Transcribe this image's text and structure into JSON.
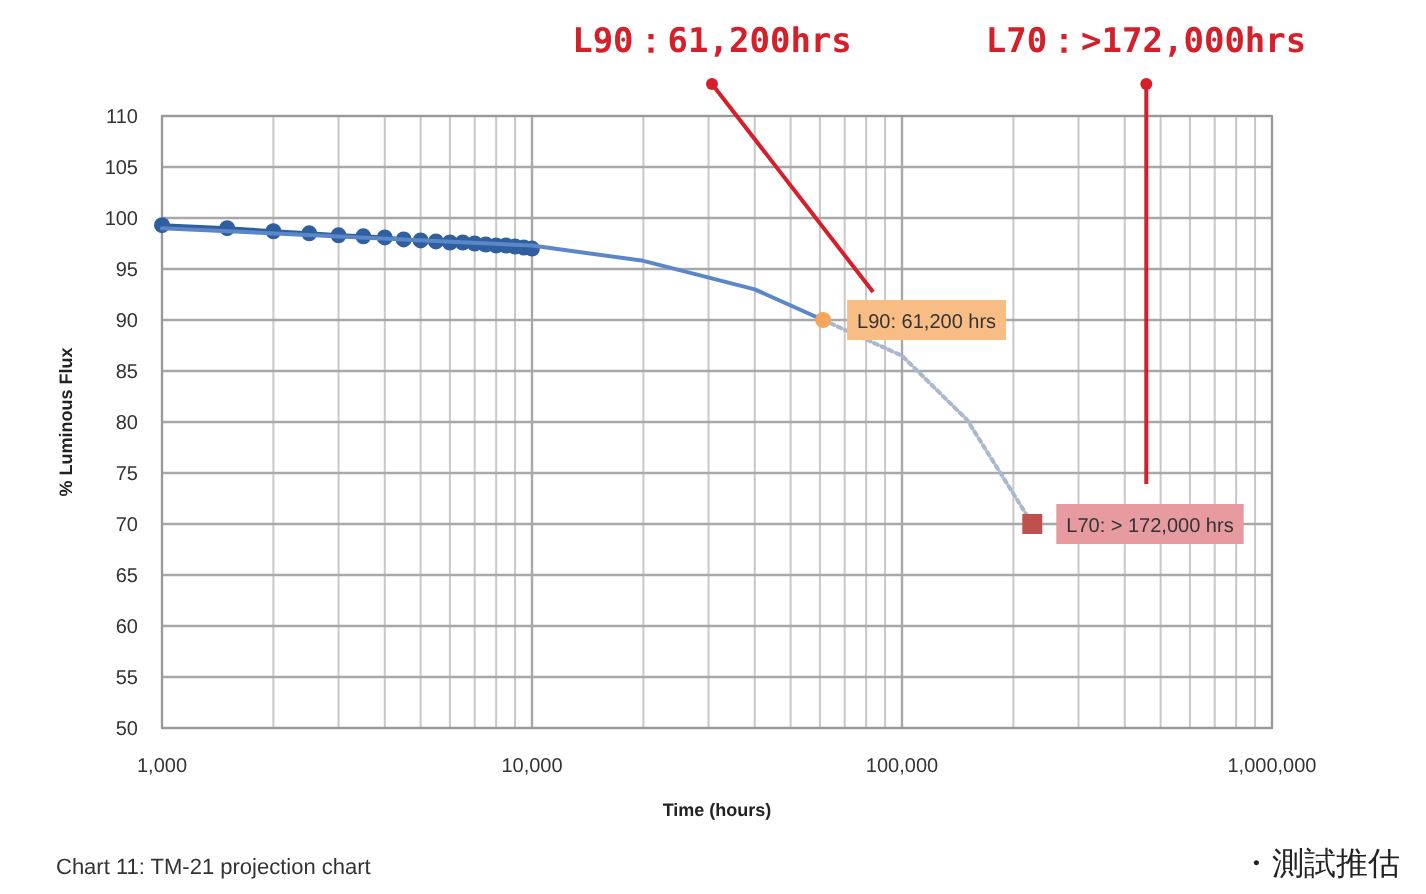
{
  "chart_data": {
    "type": "scatter",
    "xlabel": "Time (hours)",
    "ylabel": "% Luminous Flux",
    "log": "x",
    "grid": true,
    "xlim": [
      1000,
      1000000
    ],
    "ylim": [
      50,
      110
    ],
    "xticks": [
      {
        "value": 1000,
        "label": "1,000"
      },
      {
        "value": 10000,
        "label": "10,000"
      },
      {
        "value": 100000,
        "label": "100,000"
      },
      {
        "value": 1000000,
        "label": "1,000,000"
      }
    ],
    "yticks": [
      50,
      55,
      60,
      65,
      70,
      75,
      80,
      85,
      90,
      95,
      100,
      105,
      110
    ],
    "series": [
      {
        "type": "line",
        "color": "#2f5f9f",
        "marker": "circle",
        "x": [
          1000,
          1500,
          2000,
          2500,
          3000,
          3500,
          4000,
          4500,
          5000,
          5500,
          6000,
          6500,
          7000,
          7500,
          8000,
          8500,
          9000,
          9500,
          10000
        ],
        "values": [
          99.3,
          99.0,
          98.7,
          98.5,
          98.3,
          98.2,
          98.1,
          97.9,
          97.8,
          97.7,
          97.6,
          97.6,
          97.5,
          97.4,
          97.3,
          97.3,
          97.2,
          97.1,
          97.0
        ]
      },
      {
        "type": "line",
        "color": "#5b87c9",
        "marker": "none",
        "x": [
          1000,
          10000,
          20000,
          40000,
          61200
        ],
        "values": [
          99.0,
          97.3,
          95.8,
          93.0,
          90.0
        ]
      },
      {
        "type": "line",
        "color": "#a9b8cc",
        "marker": "none",
        "line_style": "dotted",
        "x": [
          61200,
          100000,
          150000,
          225000
        ],
        "values": [
          90.0,
          86.5,
          80.2,
          70.0
        ]
      },
      {
        "color": "#f5a65b",
        "marker": "circle",
        "x": [
          61200
        ],
        "values": [
          90.0
        ]
      },
      {
        "color": "#c0504d",
        "marker": "square",
        "x": [
          225000
        ],
        "values": [
          70.0
        ]
      }
    ],
    "annotations": [
      {
        "text": "L90: 61,200 hrs",
        "x": 61200,
        "y": 90
      },
      {
        "text": "L70: > 172,000 hrs",
        "x": 225000,
        "y": 70
      },
      "L90：61,200hrs",
      "L70：>172,000hrs",
      "Chart 11: TM-21 projection chart",
      "・測試推估"
    ]
  }
}
